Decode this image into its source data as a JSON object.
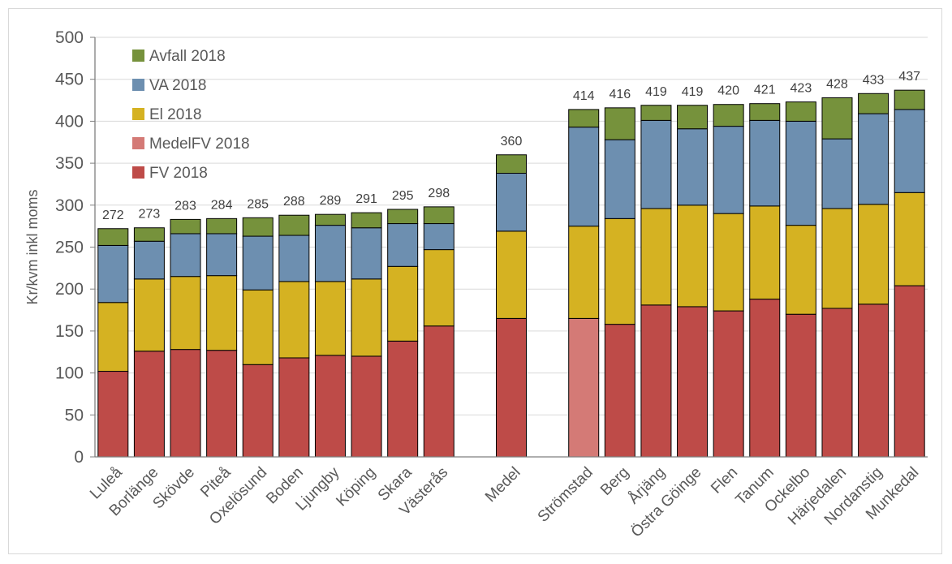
{
  "chart_data": {
    "type": "bar",
    "stacked": true,
    "ylabel": "Kr/kvm inkl moms",
    "ylim": [
      0,
      500
    ],
    "yticks": [
      0,
      50,
      100,
      150,
      200,
      250,
      300,
      350,
      400,
      450,
      500
    ],
    "grid": true,
    "legend_position": "top-left",
    "categories": [
      "Luleå",
      "Borlänge",
      "Skövde",
      "Piteå",
      "Oxelösund",
      "Boden",
      "Ljungby",
      "Köping",
      "Skara",
      "Västerås",
      "",
      "Medel",
      "",
      "Strömstad",
      "Berg",
      "Årjäng",
      "Östra Göinge",
      "Flen",
      "Tanum",
      "Ockelbo",
      "Härjedalen",
      "Nordanstig",
      "Munkedal"
    ],
    "totals": [
      272,
      273,
      283,
      284,
      285,
      288,
      289,
      291,
      295,
      298,
      null,
      360,
      null,
      414,
      416,
      419,
      419,
      420,
      421,
      423,
      428,
      433,
      437
    ],
    "series": [
      {
        "name": "FV 2018",
        "color": "#be4b48",
        "values": [
          102,
          126,
          128,
          127,
          110,
          118,
          121,
          120,
          138,
          156,
          null,
          165,
          null,
          null,
          158,
          181,
          179,
          174,
          188,
          170,
          177,
          182,
          204
        ]
      },
      {
        "name": "MedelFV 2018",
        "color": "#d47a76",
        "values": [
          null,
          null,
          null,
          null,
          null,
          null,
          null,
          null,
          null,
          null,
          null,
          null,
          null,
          165,
          null,
          null,
          null,
          null,
          null,
          null,
          null,
          null,
          null
        ]
      },
      {
        "name": "El 2018",
        "color": "#d5b222",
        "values": [
          82,
          86,
          87,
          89,
          89,
          91,
          88,
          92,
          89,
          91,
          null,
          104,
          null,
          110,
          126,
          115,
          121,
          116,
          111,
          106,
          119,
          119,
          111
        ]
      },
      {
        "name": "VA 2018",
        "color": "#6d8fb0",
        "values": [
          68,
          45,
          51,
          50,
          64,
          55,
          67,
          61,
          51,
          31,
          null,
          69,
          null,
          118,
          94,
          105,
          91,
          104,
          102,
          124,
          83,
          108,
          99
        ]
      },
      {
        "name": "Avfall 2018",
        "color": "#76923c",
        "values": [
          20,
          16,
          17,
          18,
          22,
          24,
          13,
          18,
          17,
          20,
          null,
          22,
          null,
          21,
          38,
          18,
          28,
          26,
          20,
          23,
          49,
          24,
          23
        ]
      }
    ]
  }
}
